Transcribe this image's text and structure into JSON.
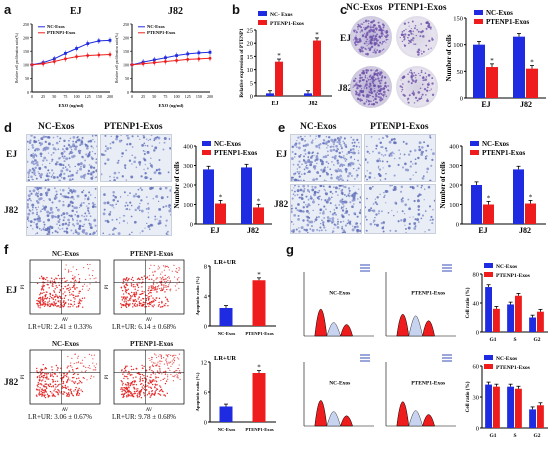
{
  "panels": {
    "a": {
      "letter": "a",
      "charts": [
        {
          "title": "EJ",
          "legend": [
            "NC-Exos",
            "PTENP1-Exos"
          ],
          "xlabel": "EXO (ug/ml)",
          "ylabel": "Relative cell proliferation ratio(%)",
          "x": [
            0,
            25,
            50,
            75,
            100,
            125,
            150,
            200
          ],
          "series": [
            {
              "name": "NC-Exos",
              "values": [
                100,
                108,
                122,
                142,
                160,
                178,
                188,
                190
              ]
            },
            {
              "name": "PTENP1-Exos",
              "values": [
                100,
                104,
                112,
                122,
                130,
                134,
                136,
                138
              ]
            }
          ],
          "ylim": [
            0,
            250
          ]
        },
        {
          "title": "J82",
          "legend": [
            "NC-Exos",
            "PTENP1-Exos"
          ],
          "xlabel": "EXO (ug/ml)",
          "ylabel": "Relative cell proliferation ratio(%)",
          "x": [
            0,
            25,
            50,
            75,
            100,
            125,
            150,
            200
          ],
          "series": [
            {
              "name": "NC-Exos",
              "values": [
                100,
                110,
                118,
                126,
                134,
                140,
                144,
                146
              ]
            },
            {
              "name": "PTENP1-Exos",
              "values": [
                100,
                104,
                108,
                112,
                116,
                120,
                122,
                124
              ]
            }
          ],
          "ylim": [
            0,
            250
          ]
        }
      ]
    },
    "b": {
      "letter": "b",
      "legend": [
        "NC- Exos",
        "PTENP1-Exos"
      ],
      "ylabel": "Relative expression of PTENP1",
      "categories": [
        "EJ",
        "J82"
      ],
      "series": [
        {
          "name": "NC- Exos",
          "values": [
            1,
            1
          ]
        },
        {
          "name": "PTENP1-Exos",
          "values": [
            13,
            21
          ]
        }
      ],
      "ylim": [
        0,
        25
      ],
      "yticks": [
        0,
        5,
        10,
        15,
        20,
        25
      ]
    },
    "c": {
      "letter": "c",
      "col_labels": [
        "NC-Exos",
        "PTENP1-Exos"
      ],
      "row_labels": [
        "EJ",
        "J82"
      ],
      "chart": {
        "legend": [
          "NC-Exos",
          "PTENP1-Exos"
        ],
        "ylabel": "Number of cells",
        "categories": [
          "EJ",
          "J82"
        ],
        "series": [
          {
            "name": "NC-Exos",
            "values": [
              100,
              115
            ]
          },
          {
            "name": "PTENP1-Exos",
            "values": [
              58,
              55
            ]
          }
        ],
        "ylim": [
          0,
          150
        ],
        "yticks": [
          0,
          50,
          100,
          150
        ]
      }
    },
    "d": {
      "letter": "d",
      "col_labels": [
        "NC-Exos",
        "PTENP1-Exos"
      ],
      "row_labels": [
        "EJ",
        "J82"
      ],
      "chart": {
        "legend": [
          "NC-Exos",
          "PTENP1-Exos"
        ],
        "ylabel": "Number of cells",
        "categories": [
          "EJ",
          "J82"
        ],
        "series": [
          {
            "name": "NC-Exos",
            "values": [
              280,
              290
            ]
          },
          {
            "name": "PTENP1-Exos",
            "values": [
              105,
              85
            ]
          }
        ],
        "ylim": [
          0,
          400
        ],
        "yticks": [
          0,
          100,
          200,
          300,
          400
        ]
      }
    },
    "e": {
      "letter": "e",
      "col_labels": [
        "NC-Exos",
        "PTENP1-Exos"
      ],
      "row_labels": [
        "EJ",
        "J82"
      ],
      "chart": {
        "legend": [
          "NC-Exos",
          "PTENP1-Exos"
        ],
        "ylabel": "Number of cells",
        "categories": [
          "EJ",
          "J82"
        ],
        "series": [
          {
            "name": "NC-Exos",
            "values": [
              200,
              280
            ]
          },
          {
            "name": "PTENP1-Exos",
            "values": [
              100,
              105
            ]
          }
        ],
        "ylim": [
          0,
          400
        ],
        "yticks": [
          0,
          100,
          200,
          300,
          400
        ]
      }
    },
    "f": {
      "letter": "f",
      "col_labels": [
        "NC-Exos",
        "PTENP1-Exos"
      ],
      "row_labels": [
        "EJ",
        "J82"
      ],
      "captions": [
        "LR+UR: 2.41 ± 0.33%",
        "LR+UR: 6.14 ± 0.68%",
        "LR+UR: 3.06 ± 0.67%",
        "LR+UR: 9.78 ± 0.68%"
      ],
      "axis_x": "AV",
      "axis_y": "PI",
      "charts": [
        {
          "title": "LR+UR",
          "ylabel": "Apoptotic ratio (%)",
          "categories": [
            "NC-Exos",
            "PTENP1-Exos"
          ],
          "values": [
            2.4,
            6.1
          ],
          "ylim": [
            0,
            8
          ]
        },
        {
          "title": "LR+UR",
          "ylabel": "Apoptotic ratio (%)",
          "categories": [
            "NC-Exos",
            "PTENP1-Exos"
          ],
          "values": [
            3.1,
            9.8
          ],
          "ylim": [
            0,
            12
          ]
        }
      ]
    },
    "g": {
      "letter": "g",
      "hist_labels": [
        "NC-Exos",
        "PTENP1-Exos",
        "NC-Exos",
        "PTENP1-Exos"
      ],
      "charts": [
        {
          "legend": [
            "NC-Exos",
            "PTENP1-Exos"
          ],
          "ylabel": "Cell ratio (%)",
          "categories": [
            "G1",
            "S",
            "G2"
          ],
          "series": [
            {
              "name": "NC-Exos",
              "values": [
                62,
                38,
                20
              ]
            },
            {
              "name": "PTENP1-Exos",
              "values": [
                32,
                50,
                28
              ]
            }
          ],
          "ylim": [
            0,
            80
          ]
        },
        {
          "legend": [
            "NC-Exos",
            "PTENP1-Exos"
          ],
          "ylabel": "Cell ratio (%)",
          "categories": [
            "G1",
            "S",
            "G2"
          ],
          "series": [
            {
              "name": "NC-Exos",
              "values": [
                42,
                40,
                18
              ]
            },
            {
              "name": "PTENP1-Exos",
              "values": [
                40,
                38,
                22
              ]
            }
          ],
          "ylim": [
            0,
            60
          ]
        }
      ]
    }
  },
  "colors": {
    "blue": "#1f2be0",
    "red": "#ee1c1c",
    "plate_ink": "#6b4fa8"
  }
}
